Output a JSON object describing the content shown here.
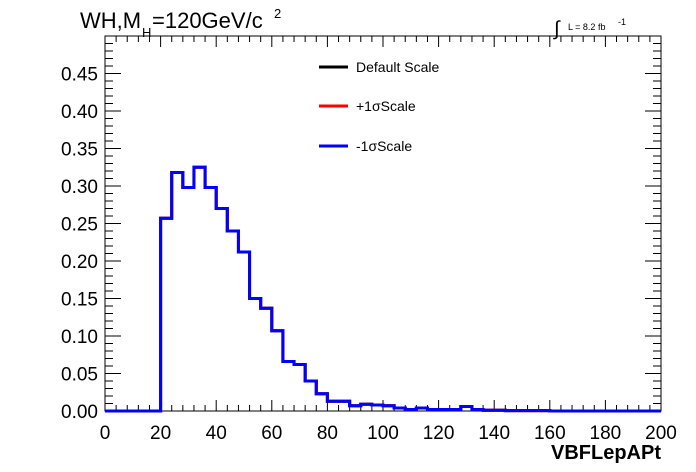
{
  "chart_data": {
    "type": "histogram",
    "title": {
      "main": "WH,M",
      "sub": "H",
      "rest": "=120GeV/c",
      "sup": "2"
    },
    "luminosity": {
      "integral_symbol": "∫",
      "text": "L = 8.2 fb",
      "sup": "-1"
    },
    "xlabel": "VBFLepAPt",
    "ylabel": "",
    "xlim": [
      0,
      200
    ],
    "ylim": [
      0,
      0.5
    ],
    "x_ticks": [
      "0",
      "20",
      "40",
      "60",
      "80",
      "100",
      "120",
      "140",
      "160",
      "180",
      "200"
    ],
    "y_ticks": [
      "0.00",
      "0.05",
      "0.10",
      "0.15",
      "0.20",
      "0.25",
      "0.30",
      "0.35",
      "0.40",
      "0.45"
    ],
    "bin_width": 4,
    "bin_edges_start": 0,
    "legend_position": "top-center",
    "series": [
      {
        "name": "Default Scale",
        "color": "#000000"
      },
      {
        "name": "+1σScale",
        "color": "#ff0000"
      },
      {
        "name": "-1σScale",
        "color": "#0000ff"
      }
    ],
    "values": [
      0,
      0,
      0,
      0,
      0,
      0.257,
      0.318,
      0.298,
      0.325,
      0.298,
      0.27,
      0.24,
      0.212,
      0.15,
      0.137,
      0.107,
      0.066,
      0.062,
      0.04,
      0.023,
      0.013,
      0.013,
      0.007,
      0.009,
      0.008,
      0.007,
      0.004,
      0.002,
      0.004,
      0.002,
      0.002,
      0.002,
      0.006,
      0.002,
      0.001,
      0.001,
      0.0005,
      0.0005,
      0.0005,
      0.0005,
      0,
      0,
      0,
      0,
      0,
      0,
      0,
      0,
      0,
      0
    ]
  }
}
